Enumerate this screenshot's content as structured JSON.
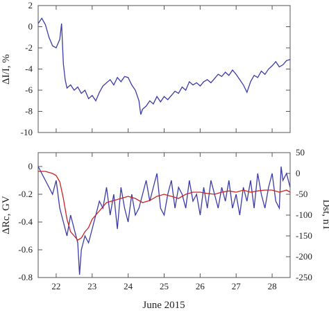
{
  "chart_data": [
    {
      "type": "line",
      "ylabel": "ΔI/I, %",
      "ylim": [
        -10,
        2
      ],
      "xlim": [
        21.5,
        28.5
      ],
      "yticks": [
        "2",
        "0",
        "-2",
        "-4",
        "-6",
        "-8",
        "-10"
      ],
      "series": [
        {
          "color": "#3a3aa8",
          "x": [
            21.5,
            21.6,
            21.7,
            21.8,
            21.9,
            22.0,
            22.1,
            22.15,
            22.2,
            22.25,
            22.3,
            22.4,
            22.5,
            22.6,
            22.7,
            22.8,
            22.9,
            23.0,
            23.1,
            23.2,
            23.3,
            23.4,
            23.5,
            23.6,
            23.7,
            23.8,
            23.9,
            24.0,
            24.1,
            24.2,
            24.3,
            24.35,
            24.4,
            24.5,
            24.6,
            24.7,
            24.8,
            24.9,
            25.0,
            25.1,
            25.2,
            25.3,
            25.4,
            25.5,
            25.6,
            25.7,
            25.8,
            25.9,
            26.0,
            26.1,
            26.2,
            26.3,
            26.4,
            26.5,
            26.6,
            26.7,
            26.8,
            26.9,
            27.0,
            27.1,
            27.2,
            27.3,
            27.4,
            27.5,
            27.6,
            27.7,
            27.8,
            27.9,
            28.0,
            28.1,
            28.2,
            28.3,
            28.4,
            28.5
          ],
          "y": [
            0.3,
            0.8,
            0.2,
            -1.0,
            -1.8,
            -2.0,
            -1.2,
            0.3,
            -3.5,
            -5.0,
            -5.8,
            -5.5,
            -6.0,
            -5.7,
            -6.3,
            -6.0,
            -6.8,
            -6.5,
            -7.0,
            -6.2,
            -5.6,
            -5.3,
            -5.0,
            -5.5,
            -4.8,
            -5.2,
            -4.7,
            -4.8,
            -5.5,
            -6.0,
            -7.0,
            -8.3,
            -7.8,
            -7.5,
            -7.0,
            -7.3,
            -6.6,
            -7.1,
            -6.6,
            -6.9,
            -6.5,
            -6.1,
            -6.3,
            -5.7,
            -6.0,
            -5.2,
            -5.5,
            -5.3,
            -5.6,
            -5.2,
            -5.0,
            -5.3,
            -4.9,
            -4.5,
            -4.7,
            -4.3,
            -4.6,
            -4.1,
            -4.5,
            -5.0,
            -5.5,
            -6.2,
            -5.2,
            -4.6,
            -4.8,
            -4.2,
            -4.5,
            -4.0,
            -3.7,
            -3.3,
            -3.8,
            -3.6,
            -3.2,
            -3.1
          ]
        }
      ]
    },
    {
      "type": "line",
      "ylabel": "ΔRc, GV",
      "ylabel_right": "Dst, nT",
      "xlabel": "June 2015",
      "ylim": [
        -0.8,
        0.1
      ],
      "ylim_right": [
        -250,
        50
      ],
      "xlim": [
        21.5,
        28.5
      ],
      "yticks": [
        "0",
        "-0.2",
        "-0.4",
        "-0.6",
        "-0.8"
      ],
      "yticks_right": [
        "50",
        "0",
        "-50",
        "-100",
        "-150",
        "-200",
        "-250"
      ],
      "xticks": [
        "22",
        "23",
        "24",
        "25",
        "26",
        "27",
        "28"
      ],
      "series": [
        {
          "color": "#3a3aa8",
          "axis": "left",
          "x": [
            21.5,
            21.6,
            21.7,
            21.8,
            21.9,
            22.0,
            22.1,
            22.2,
            22.3,
            22.4,
            22.5,
            22.6,
            22.65,
            22.7,
            22.8,
            22.9,
            23.0,
            23.1,
            23.2,
            23.3,
            23.4,
            23.5,
            23.6,
            23.7,
            23.8,
            23.9,
            24.0,
            24.1,
            24.2,
            24.3,
            24.4,
            24.5,
            24.6,
            24.7,
            24.8,
            24.9,
            25.0,
            25.1,
            25.2,
            25.3,
            25.4,
            25.5,
            25.6,
            25.7,
            25.8,
            25.9,
            26.0,
            26.1,
            26.2,
            26.3,
            26.4,
            26.5,
            26.6,
            26.7,
            26.8,
            26.9,
            27.0,
            27.1,
            27.2,
            27.3,
            27.4,
            27.5,
            27.6,
            27.7,
            27.8,
            27.9,
            28.0,
            28.1,
            28.2,
            28.25,
            28.3,
            28.4,
            28.5
          ],
          "y": [
            0.0,
            -0.05,
            -0.1,
            -0.15,
            -0.2,
            -0.1,
            -0.3,
            -0.4,
            -0.5,
            -0.35,
            -0.45,
            -0.55,
            -0.78,
            -0.6,
            -0.5,
            -0.55,
            -0.45,
            -0.35,
            -0.25,
            -0.3,
            -0.15,
            -0.35,
            -0.2,
            -0.45,
            -0.15,
            -0.3,
            -0.4,
            -0.2,
            -0.35,
            -0.3,
            -0.2,
            -0.1,
            -0.25,
            -0.15,
            -0.05,
            -0.3,
            -0.35,
            -0.2,
            -0.1,
            -0.3,
            -0.15,
            -0.2,
            -0.3,
            -0.1,
            -0.25,
            -0.2,
            -0.35,
            -0.15,
            -0.3,
            -0.1,
            -0.2,
            -0.3,
            -0.15,
            -0.25,
            -0.1,
            -0.3,
            -0.2,
            -0.35,
            -0.15,
            -0.25,
            -0.1,
            -0.3,
            -0.05,
            -0.2,
            -0.3,
            -0.15,
            -0.05,
            -0.25,
            -0.3,
            0.0,
            -0.1,
            -0.05,
            -0.15
          ]
        },
        {
          "color": "#cc2222",
          "axis": "right",
          "x": [
            21.5,
            21.7,
            21.9,
            22.0,
            22.1,
            22.2,
            22.3,
            22.4,
            22.5,
            22.6,
            22.7,
            22.8,
            22.9,
            23.0,
            23.2,
            23.4,
            23.6,
            23.8,
            24.0,
            24.2,
            24.4,
            24.6,
            24.8,
            25.0,
            25.2,
            25.4,
            25.6,
            25.8,
            26.0,
            26.2,
            26.4,
            26.6,
            26.8,
            27.0,
            27.2,
            27.4,
            27.6,
            27.8,
            28.0,
            28.2,
            28.4,
            28.5
          ],
          "y": [
            5,
            5,
            0,
            -5,
            -20,
            -60,
            -110,
            -140,
            -150,
            -160,
            -155,
            -140,
            -130,
            -110,
            -90,
            -70,
            -65,
            -60,
            -55,
            -60,
            -70,
            -65,
            -55,
            -50,
            -55,
            -60,
            -50,
            -45,
            -45,
            -48,
            -50,
            -45,
            -42,
            -45,
            -40,
            -45,
            -42,
            -40,
            -40,
            -45,
            -40,
            -45
          ]
        }
      ]
    }
  ]
}
